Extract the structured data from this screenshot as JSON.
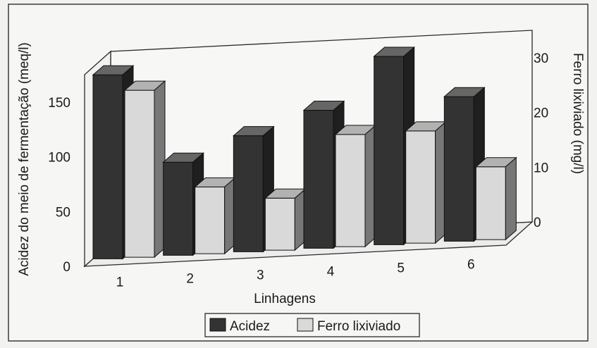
{
  "chart_data": {
    "type": "bar",
    "style": "3d",
    "categories": [
      "1",
      "2",
      "3",
      "4",
      "5",
      "6"
    ],
    "xlabel": "Linhagens",
    "ylabel": "Acidez do meio de fermentação (meq/l)",
    "y2label": "Ferro lixiviado (mg/l)",
    "ylim": [
      0,
      175
    ],
    "y2lim": [
      0,
      35
    ],
    "yticks": [
      0,
      50,
      100,
      150
    ],
    "y2ticks": [
      0,
      10,
      20,
      30
    ],
    "grid": false,
    "legend_position": "bottom-center",
    "series": [
      {
        "name": "Acidez",
        "axis": "left",
        "color": "#333333",
        "values": [
          168,
          85,
          106,
          126,
          172,
          132
        ]
      },
      {
        "name": "Ferro lixiviado",
        "axis": "right",
        "color": "#d9d9d9",
        "values": [
          30.5,
          12.2,
          9.5,
          20.5,
          20.5,
          13.3
        ]
      }
    ]
  },
  "bottom_caption": "... ..... ........ ... ......... .... ... ........... ......... ....... . ...... ..... ....... ... ....... ....... . ......... ....... .."
}
